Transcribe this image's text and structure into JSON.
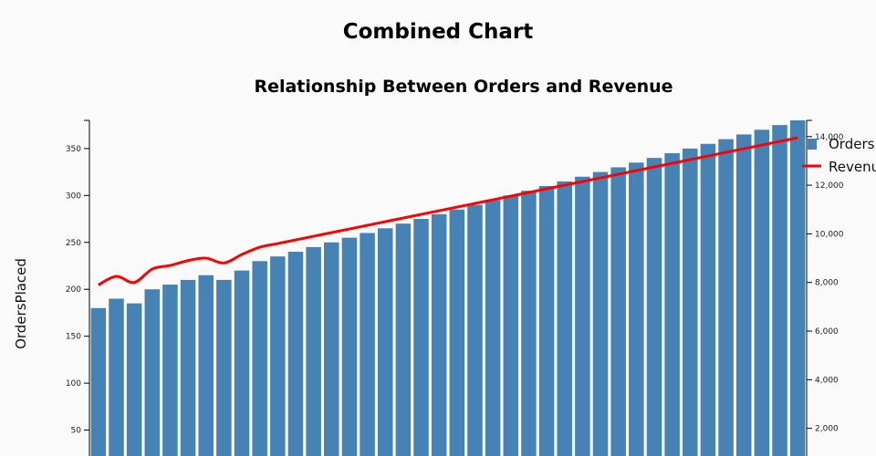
{
  "page": {
    "title": "Combined Chart"
  },
  "chart_data": {
    "type": "bar",
    "title": "Relationship Between Orders and Revenue",
    "ylabel": "OrdersPlaced",
    "ylabel_right": "",
    "xlabel": "",
    "ylim": [
      0,
      380
    ],
    "ylim_right": [
      0,
      14666
    ],
    "yticks": [
      50,
      100,
      150,
      200,
      250,
      300,
      350
    ],
    "yticks_right": [
      2000,
      4000,
      6000,
      8000,
      10000,
      12000,
      14000
    ],
    "yticks_right_labels": [
      "2,000",
      "4,000",
      "6,000",
      "8,000",
      "10,000",
      "12,000",
      "14,000"
    ],
    "grid": false,
    "legend": "top-right",
    "colors": {
      "bars": "#4682b4",
      "line": "#ff0000"
    },
    "series": [
      {
        "name": "Orders",
        "type": "bar",
        "axis": "left",
        "values": [
          180,
          190,
          185,
          200,
          205,
          210,
          215,
          210,
          220,
          230,
          235,
          240,
          245,
          250,
          255,
          260,
          265,
          270,
          275,
          280,
          285,
          290,
          295,
          300,
          305,
          310,
          315,
          320,
          325,
          330,
          335,
          340,
          345,
          350,
          355,
          360,
          365,
          370,
          375,
          380
        ]
      },
      {
        "name": "Revenue",
        "type": "line",
        "axis": "right",
        "values": [
          7900,
          8250,
          8000,
          8550,
          8700,
          8900,
          9000,
          8800,
          9150,
          9450,
          9600,
          9750,
          9900,
          10050,
          10200,
          10350,
          10500,
          10650,
          10800,
          10950,
          11100,
          11250,
          11400,
          11550,
          11700,
          11850,
          12000,
          12150,
          12300,
          12450,
          12600,
          12750,
          12900,
          13050,
          13200,
          13350,
          13500,
          13650,
          13800,
          13950
        ]
      }
    ]
  }
}
